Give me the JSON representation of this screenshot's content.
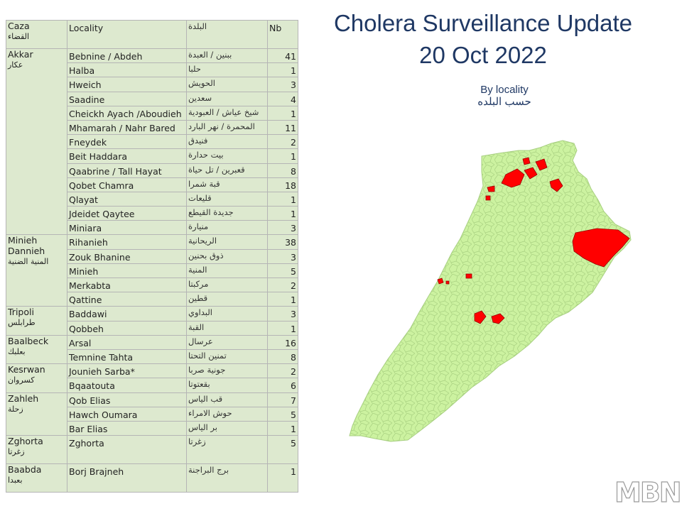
{
  "page": {
    "title_line1": "Cholera Surveillance Update",
    "title_line2": "20 Oct 2022",
    "subtitle_en": "By locality",
    "subtitle_ar": "حسب البلده"
  },
  "table": {
    "headers": {
      "caza_en": "Caza",
      "caza_ar": "القضاء",
      "locality": "Locality",
      "locality_ar": "البلدة",
      "nb": "Nb"
    },
    "groups": [
      {
        "caza_en": "Akkar",
        "caza_ar": "عكار",
        "rows": [
          {
            "locality": "Bebnine / Abdeh",
            "ar": "ببنين / العبدة",
            "nb": "41"
          },
          {
            "locality": "Halba",
            "ar": "حلبا",
            "nb": "1"
          },
          {
            "locality": "Hweich",
            "ar": "الحويش",
            "nb": "3"
          },
          {
            "locality": "Saadine",
            "ar": "سعدين",
            "nb": "4"
          },
          {
            "locality": "Cheickh Ayach /Aboudieh",
            "ar": "شيخ عياش / العبودية",
            "nb": "1"
          },
          {
            "locality": "Mhamarah / Nahr Bared",
            "ar": "المحمرة / نهر البارد",
            "nb": "11"
          },
          {
            "locality": "Fneydek",
            "ar": "فنيدق",
            "nb": "2"
          },
          {
            "locality": "Beit Haddara",
            "ar": "بيت حدارة",
            "nb": "1"
          },
          {
            "locality": "Qaabrine / Tall Hayat",
            "ar": "قعبرين / تل حياة",
            "nb": "8"
          },
          {
            "locality": "Qobet Chamra",
            "ar": "قبة شمرا",
            "nb": "18"
          },
          {
            "locality": "Qlayat",
            "ar": "قليعات",
            "nb": "1"
          },
          {
            "locality": "Jdeidet Qaytee",
            "ar": "جديدة القيطع",
            "nb": "1"
          },
          {
            "locality": "Miniara",
            "ar": "منيارة",
            "nb": "3"
          }
        ]
      },
      {
        "caza_en": "Minieh Dannieh",
        "caza_ar": "المنية الضنية",
        "rows": [
          {
            "locality": "Rihanieh",
            "ar": "الريحانية",
            "nb": "38"
          },
          {
            "locality": "Zouk Bhanine",
            "ar": "ذوق بحنين",
            "nb": "3"
          },
          {
            "locality": "Minieh",
            "ar": "المنية",
            "nb": "5"
          },
          {
            "locality": "Merkabta",
            "ar": "مركبتا",
            "nb": "2"
          },
          {
            "locality": "Qattine",
            "ar": "قطين",
            "nb": "1"
          }
        ]
      },
      {
        "caza_en": "Tripoli",
        "caza_ar": "طرابلس",
        "rows": [
          {
            "locality": "Baddawi",
            "ar": "البداوي",
            "nb": "3"
          },
          {
            "locality": "Qobbeh",
            "ar": "القبة",
            "nb": "1"
          }
        ]
      },
      {
        "caza_en": "Baalbeck",
        "caza_ar": "بعلبك",
        "rows": [
          {
            "locality": "Arsal",
            "ar": "عرسال",
            "nb": "16"
          },
          {
            "locality": "Temnine Tahta",
            "ar": "تمنين التحتا",
            "nb": "8"
          }
        ]
      },
      {
        "caza_en": "Kesrwan",
        "caza_ar": "كسروان",
        "rows": [
          {
            "locality": "Jounieh Sarba*",
            "ar": "جونية صربا",
            "nb": "2"
          },
          {
            "locality": "Bqaatouta",
            "ar": "بقعتوتا",
            "nb": "6"
          }
        ]
      },
      {
        "caza_en": "Zahleh",
        "caza_ar": "زحلة",
        "rows": [
          {
            "locality": "Qob Elias",
            "ar": "قب الياس",
            "nb": "7"
          },
          {
            "locality": "Hawch Oumara",
            "ar": "حوش الامراء",
            "nb": "5"
          },
          {
            "locality": "Bar Elias",
            "ar": "بر الياس",
            "nb": "1"
          }
        ]
      },
      {
        "caza_en": "Zghorta",
        "caza_ar": "زغرتا",
        "rows": [
          {
            "locality": "Zghorta",
            "ar": "زغرتا",
            "nb": "5"
          }
        ]
      },
      {
        "caza_en": "Baabda",
        "caza_ar": "بعبدا",
        "rows": [
          {
            "locality": "Borj Brajneh",
            "ar": "برج البراجنة",
            "nb": "1"
          }
        ]
      }
    ]
  },
  "map": {
    "base_fill": "#ccf2a0",
    "base_stroke": "#a7cf80",
    "case_fill": "#ff0000",
    "case_stroke": "#990000"
  },
  "logo": {
    "text": "MBN"
  },
  "colors": {
    "title": "#1f3864",
    "table_bg": "#dde9cf"
  }
}
